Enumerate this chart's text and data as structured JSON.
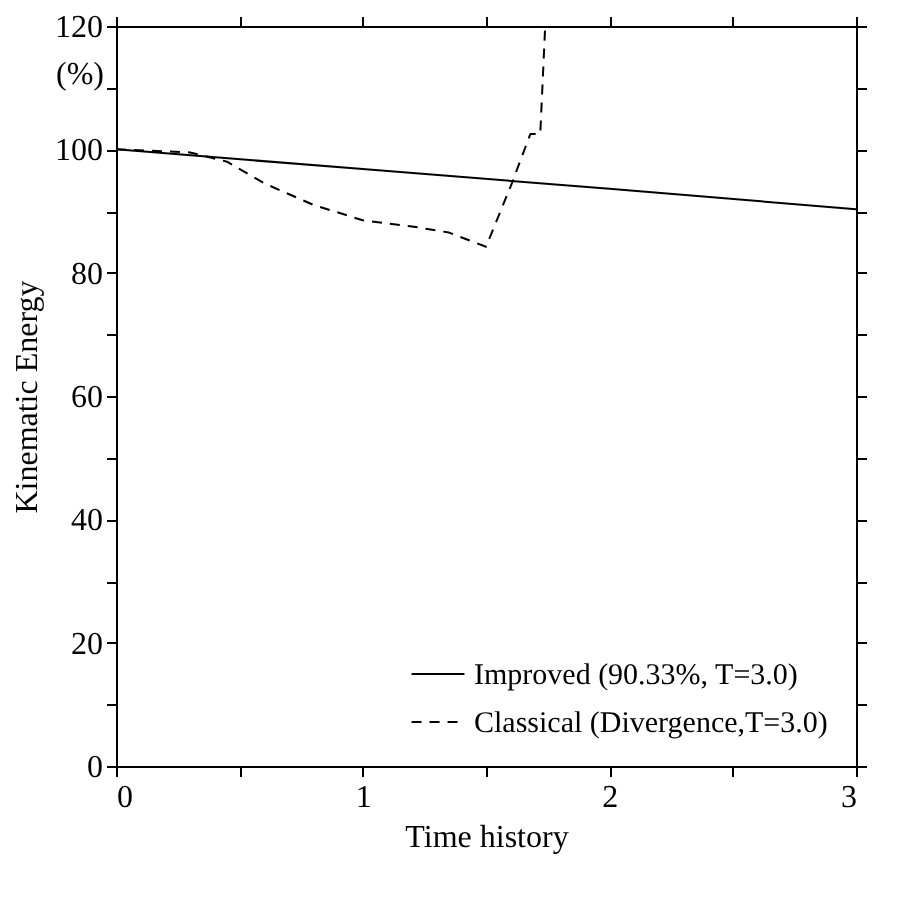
{
  "chart_data": {
    "type": "line",
    "xlabel": "Time history",
    "ylabel": "Kinematic Energy",
    "annotations": [
      "(%)"
    ],
    "xlim": [
      0,
      3
    ],
    "ylim": [
      0,
      120
    ],
    "xticks": [
      0,
      {
        "value": 0.5,
        "label": null
      },
      1,
      {
        "value": 1.5,
        "label": null
      },
      2,
      {
        "value": 2.5,
        "label": null
      },
      3
    ],
    "yticks": [
      0,
      {
        "value": 10,
        "label": null
      },
      20,
      {
        "value": 30,
        "label": null
      },
      40,
      {
        "value": 50,
        "label": null
      },
      60,
      {
        "value": 70,
        "label": null
      },
      80,
      {
        "value": 90,
        "label": null
      },
      100,
      {
        "value": 110,
        "label": null
      },
      120
    ],
    "grid": false,
    "legend": "bottom right",
    "marker": "none",
    "series": [
      {
        "name": "Improved (90.33%, T=3.0)",
        "color": "#000000",
        "line_style": "solid",
        "x": [
          0,
          1,
          2,
          3
        ],
        "values": [
          100,
          96.8,
          93.6,
          90.3
        ]
      },
      {
        "name": "Classical (Divergence,T=3.0)",
        "color": "#000000",
        "line_style": "dashed",
        "x": [
          0,
          0.3,
          0.45,
          0.6,
          0.8,
          1.0,
          1.2,
          1.35,
          1.5,
          1.6,
          1.68,
          1.72,
          1.74
        ],
        "values": [
          100,
          99.5,
          98,
          94.5,
          91,
          88.5,
          87.5,
          86.5,
          84.2,
          94,
          102.5,
          102.5,
          120
        ]
      }
    ]
  }
}
